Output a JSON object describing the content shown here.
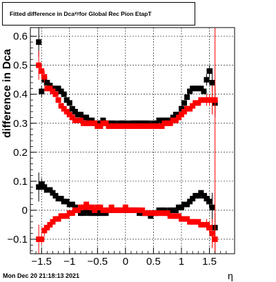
{
  "title": {
    "prefix": "Fitted difference in Dca",
    "sub": "xy",
    "suffix": " for Global Rec Pion EtapT"
  },
  "datestamp": "Mon Dec 20 21:18:13 2021",
  "chart_data": {
    "type": "scatter",
    "xlabel": "η",
    "ylabel": "difference in Dca",
    "xlim": [
      -1.7,
      1.95
    ],
    "ylim": [
      -0.15,
      0.63
    ],
    "xticks": [
      -1.5,
      -1,
      -0.5,
      0,
      0.5,
      1,
      1.5
    ],
    "xtick_labels": [
      "−1.5",
      "−1",
      "−0.5",
      "0",
      "0.5",
      "1",
      "1.5"
    ],
    "yticks": [
      -0.1,
      0,
      0.1,
      0.2,
      0.3,
      0.4,
      0.5,
      0.6
    ],
    "ytick_labels": [
      "−0.1",
      "0",
      "0.1",
      "0.2",
      "0.3",
      "0.4",
      "0.5",
      "0.6"
    ],
    "grid": true,
    "colors": {
      "black": "#000000",
      "red": "#ff0000"
    },
    "series": [
      {
        "color": "#000000",
        "x": [
          -1.55,
          -1.5,
          -1.45,
          -1.4,
          -1.35,
          -1.3,
          -1.25,
          -1.2,
          -1.15,
          -1.1,
          -1.05,
          -1.0,
          -0.95,
          -0.9,
          -0.85,
          -0.8,
          -0.75,
          -0.7,
          -0.65,
          -0.6,
          -0.55,
          -0.5,
          -0.45,
          -0.4,
          -0.35,
          -0.3,
          -0.25,
          -0.2,
          -0.15,
          -0.1,
          -0.05,
          0.0,
          0.05,
          0.1,
          0.15,
          0.2,
          0.25,
          0.3,
          0.35,
          0.4,
          0.45,
          0.5,
          0.55,
          0.6,
          0.65,
          0.7,
          0.75,
          0.8,
          0.85,
          0.9,
          0.95,
          1.0,
          1.05,
          1.1,
          1.15,
          1.2,
          1.25,
          1.3,
          1.35,
          1.4,
          1.45,
          1.5,
          1.55,
          1.6
        ],
        "y": [
          0.58,
          0.41,
          0.45,
          0.44,
          0.43,
          0.42,
          0.42,
          0.42,
          0.41,
          0.4,
          0.38,
          0.37,
          0.35,
          0.34,
          0.33,
          0.33,
          0.32,
          0.32,
          0.31,
          0.31,
          0.3,
          0.3,
          0.3,
          0.31,
          0.3,
          0.3,
          0.3,
          0.3,
          0.29,
          0.3,
          0.3,
          0.3,
          0.29,
          0.3,
          0.3,
          0.3,
          0.3,
          0.3,
          0.3,
          0.3,
          0.29,
          0.3,
          0.3,
          0.31,
          0.31,
          0.31,
          0.31,
          0.31,
          0.32,
          0.33,
          0.33,
          0.35,
          0.37,
          0.39,
          0.41,
          0.42,
          0.42,
          0.42,
          0.42,
          0.41,
          0.45,
          0.48,
          0.44,
          0.37
        ]
      },
      {
        "color": "#ff0000",
        "x": [
          -1.55,
          -1.5,
          -1.45,
          -1.4,
          -1.35,
          -1.3,
          -1.25,
          -1.2,
          -1.15,
          -1.1,
          -1.05,
          -1.0,
          -0.95,
          -0.9,
          -0.85,
          -0.8,
          -0.75,
          -0.7,
          -0.65,
          -0.6,
          -0.55,
          -0.5,
          -0.45,
          -0.4,
          -0.35,
          -0.3,
          -0.25,
          -0.2,
          -0.15,
          -0.1,
          -0.05,
          0.0,
          0.05,
          0.1,
          0.15,
          0.2,
          0.25,
          0.3,
          0.35,
          0.4,
          0.45,
          0.5,
          0.55,
          0.6,
          0.65,
          0.7,
          0.75,
          0.8,
          0.85,
          0.9,
          0.95,
          1.0,
          1.05,
          1.1,
          1.15,
          1.2,
          1.25,
          1.3,
          1.35,
          1.4,
          1.45,
          1.5,
          1.55,
          1.6
        ],
        "y": [
          0.5,
          0.48,
          0.46,
          0.42,
          0.42,
          0.41,
          0.4,
          0.38,
          0.36,
          0.35,
          0.34,
          0.33,
          0.32,
          0.31,
          0.31,
          0.31,
          0.3,
          0.3,
          0.3,
          0.3,
          0.3,
          0.29,
          0.29,
          0.3,
          0.3,
          0.29,
          0.29,
          0.29,
          0.29,
          0.29,
          0.29,
          0.29,
          0.29,
          0.29,
          0.29,
          0.29,
          0.29,
          0.29,
          0.29,
          0.29,
          0.29,
          0.29,
          0.29,
          0.29,
          0.29,
          0.3,
          0.3,
          0.3,
          0.31,
          0.31,
          0.32,
          0.33,
          0.34,
          0.35,
          0.35,
          0.36,
          0.37,
          0.37,
          0.38,
          0.38,
          0.38,
          0.38,
          0.38,
          0.38
        ]
      },
      {
        "color": "#000000",
        "x": [
          -1.55,
          -1.5,
          -1.45,
          -1.4,
          -1.35,
          -1.3,
          -1.25,
          -1.2,
          -1.15,
          -1.1,
          -1.05,
          -1.0,
          -0.95,
          -0.9,
          -0.85,
          -0.8,
          -0.75,
          -0.7,
          -0.65,
          -0.6,
          -0.55,
          -0.5,
          -0.45,
          -0.4,
          -0.35,
          -0.3,
          -0.25,
          -0.2,
          -0.15,
          -0.1,
          -0.05,
          0.0,
          0.05,
          0.1,
          0.15,
          0.2,
          0.25,
          0.3,
          0.35,
          0.4,
          0.45,
          0.5,
          0.55,
          0.6,
          0.65,
          0.7,
          0.75,
          0.8,
          0.85,
          0.9,
          0.95,
          1.0,
          1.05,
          1.1,
          1.15,
          1.2,
          1.25,
          1.3,
          1.35,
          1.4,
          1.45,
          1.5,
          1.55,
          1.6
        ],
        "y": [
          0.08,
          0.09,
          0.08,
          0.07,
          0.07,
          0.06,
          0.05,
          0.04,
          0.04,
          0.03,
          0.03,
          0.02,
          0.02,
          0.01,
          0.0,
          -0.01,
          -0.01,
          0.0,
          -0.01,
          -0.01,
          -0.01,
          -0.01,
          -0.01,
          -0.01,
          -0.01,
          0.0,
          0.0,
          0.0,
          0.0,
          0.0,
          0.0,
          0.0,
          0.0,
          0.0,
          0.0,
          0.0,
          -0.01,
          -0.01,
          -0.01,
          -0.01,
          -0.02,
          -0.01,
          -0.01,
          0.0,
          0.0,
          0.0,
          -0.01,
          0.0,
          0.0,
          0.0,
          0.01,
          0.01,
          0.02,
          0.02,
          0.03,
          0.04,
          0.05,
          0.05,
          0.06,
          0.05,
          0.04,
          0.03,
          0.01,
          -0.06
        ]
      },
      {
        "color": "#ff0000",
        "x": [
          -1.55,
          -1.5,
          -1.45,
          -1.4,
          -1.35,
          -1.3,
          -1.25,
          -1.2,
          -1.15,
          -1.1,
          -1.05,
          -1.0,
          -0.95,
          -0.9,
          -0.85,
          -0.8,
          -0.75,
          -0.7,
          -0.65,
          -0.6,
          -0.55,
          -0.5,
          -0.45,
          -0.4,
          -0.35,
          -0.3,
          -0.25,
          -0.2,
          -0.15,
          -0.1,
          -0.05,
          0.0,
          0.05,
          0.1,
          0.15,
          0.2,
          0.25,
          0.3,
          0.35,
          0.4,
          0.45,
          0.5,
          0.55,
          0.6,
          0.65,
          0.7,
          0.75,
          0.8,
          0.85,
          0.9,
          0.95,
          1.0,
          1.05,
          1.1,
          1.15,
          1.2,
          1.25,
          1.3,
          1.35,
          1.4,
          1.45,
          1.5,
          1.55,
          1.6
        ],
        "y": [
          -0.1,
          -0.1,
          -0.07,
          -0.06,
          -0.05,
          -0.04,
          -0.03,
          -0.03,
          -0.02,
          -0.02,
          -0.02,
          -0.01,
          -0.01,
          0.0,
          0.0,
          0.01,
          0.01,
          0.02,
          0.01,
          0.01,
          0.0,
          0.01,
          0.01,
          0.0,
          0.0,
          0.0,
          0.01,
          0.0,
          0.0,
          0.0,
          0.0,
          0.01,
          0.0,
          0.0,
          0.0,
          0.0,
          0.0,
          0.0,
          -0.01,
          -0.01,
          -0.01,
          -0.01,
          -0.01,
          -0.01,
          -0.01,
          -0.01,
          -0.01,
          -0.02,
          -0.02,
          -0.02,
          -0.02,
          -0.03,
          -0.03,
          -0.03,
          -0.04,
          -0.04,
          -0.04,
          -0.04,
          -0.05,
          -0.05,
          -0.05,
          -0.06,
          -0.08,
          -0.1
        ]
      }
    ]
  }
}
